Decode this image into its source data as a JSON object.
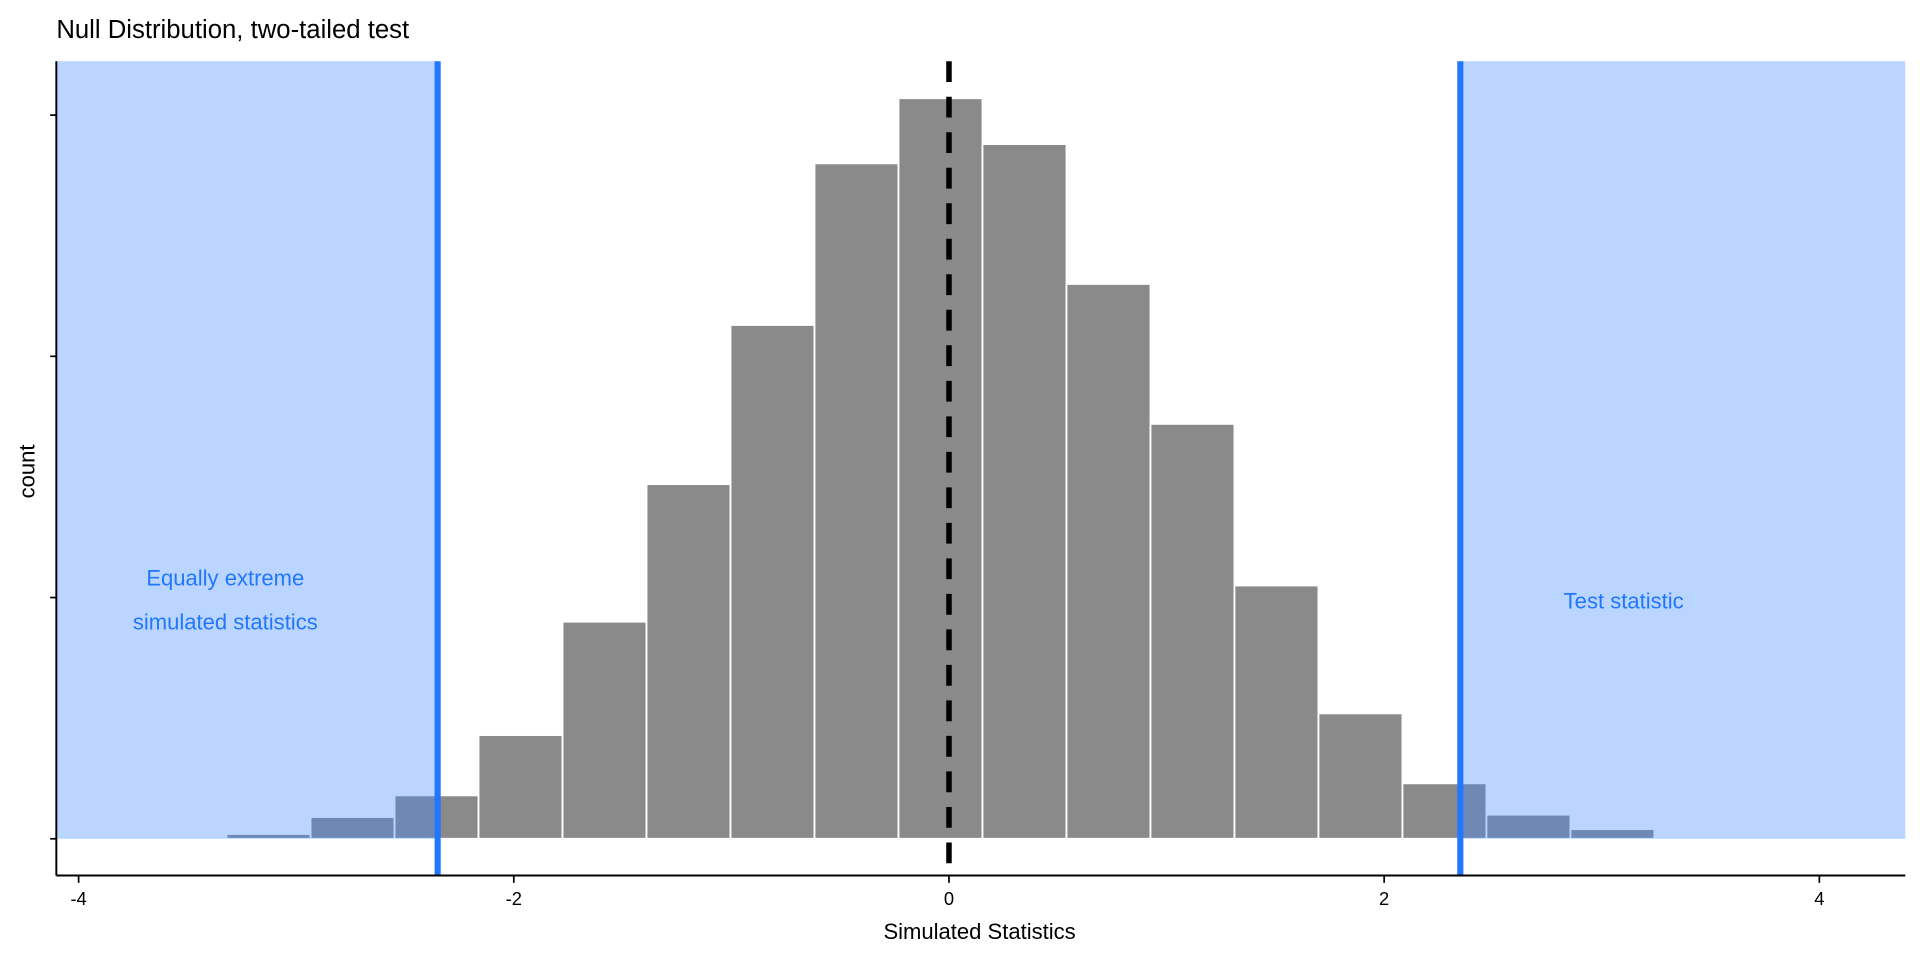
{
  "chart_data": {
    "type": "bar",
    "title": "Null Distribution, two-tailed test",
    "xlabel": "Simulated Statistics",
    "ylabel": "count",
    "xlim": [
      -4.1,
      4.35
    ],
    "ylim": [
      -15,
      322
    ],
    "x_ticks": [
      -4,
      -2,
      0,
      2,
      4
    ],
    "x_tick_labels": [
      "-4",
      "-2",
      "0",
      "2",
      "4"
    ],
    "y_ticks": [
      0,
      100,
      200,
      300
    ],
    "y_tick_labels_shown": false,
    "grid": false,
    "bin_start": -3.32,
    "bin_width": 0.386,
    "values": [
      2,
      9,
      18,
      43,
      90,
      147,
      213,
      280,
      307,
      288,
      230,
      172,
      105,
      52,
      23,
      10,
      4
    ],
    "null_center": 0,
    "test_statistic": 2.35,
    "equally_extreme": -2.35,
    "annotations": {
      "left_line1": "Equally extreme",
      "left_line2": "simulated statistics",
      "right": "Test statistic"
    },
    "colors": {
      "bar": "#8a8a8a",
      "shade": "#3a86ff",
      "line": "#2277ff",
      "text_accent": "#2277ff"
    }
  }
}
